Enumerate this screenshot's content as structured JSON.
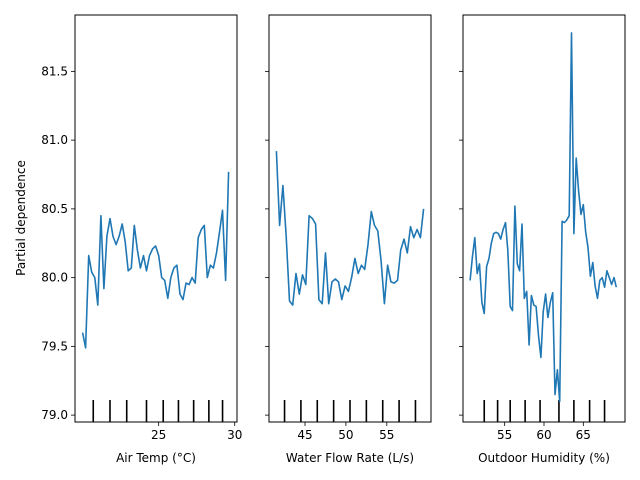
{
  "chart_data": [
    {
      "type": "line",
      "xlabel": "Air Temp (°C)",
      "ylabel": "Partial dependence",
      "xticks": [
        25,
        30
      ],
      "xlim": [
        19.5,
        30.15
      ],
      "ylim": [
        78.95,
        81.91
      ],
      "yticks": [
        79.0,
        79.5,
        80.0,
        80.5,
        81.0,
        81.5
      ],
      "line_color": "#1f77b4",
      "deciles": [
        20.7,
        21.8,
        22.9,
        24.2,
        25.3,
        26.3,
        27.3,
        28.3,
        29.2
      ],
      "x": [
        20.0,
        20.2,
        20.4,
        20.6,
        20.8,
        21.0,
        21.2,
        21.4,
        21.6,
        21.8,
        22.0,
        22.2,
        22.4,
        22.6,
        22.8,
        23.0,
        23.2,
        23.4,
        23.6,
        23.8,
        24.0,
        24.2,
        24.4,
        24.6,
        24.8,
        25.0,
        25.2,
        25.4,
        25.6,
        25.8,
        26.0,
        26.2,
        26.4,
        26.6,
        26.8,
        27.0,
        27.2,
        27.4,
        27.6,
        27.8,
        28.0,
        28.2,
        28.4,
        28.6,
        28.8,
        29.0,
        29.2,
        29.4,
        29.6
      ],
      "y": [
        79.6,
        79.49,
        80.16,
        80.04,
        80.0,
        79.8,
        80.45,
        79.92,
        80.3,
        80.43,
        80.3,
        80.24,
        80.3,
        80.39,
        80.26,
        80.05,
        80.07,
        80.38,
        80.2,
        80.07,
        80.16,
        80.05,
        80.16,
        80.21,
        80.23,
        80.16,
        80.0,
        79.98,
        79.85,
        80.0,
        80.07,
        80.09,
        79.88,
        79.84,
        79.96,
        79.95,
        80.0,
        79.96,
        80.29,
        80.35,
        80.38,
        80.0,
        80.09,
        80.07,
        80.18,
        80.33,
        80.49,
        79.98,
        80.77
      ]
    },
    {
      "type": "line",
      "xlabel": "Water Flow Rate (L/s)",
      "xticks": [
        45,
        50,
        55
      ],
      "xlim": [
        40.6,
        60.4
      ],
      "ylim": [
        78.95,
        81.91
      ],
      "line_color": "#1f77b4",
      "deciles": [
        42.5,
        44.5,
        46.5,
        48.5,
        50.5,
        52.5,
        54.5,
        56.5,
        58.5
      ],
      "x": [
        41.5,
        41.9,
        42.3,
        42.7,
        43.1,
        43.5,
        43.9,
        44.3,
        44.7,
        45.1,
        45.5,
        45.9,
        46.3,
        46.7,
        47.1,
        47.5,
        47.9,
        48.3,
        48.7,
        49.1,
        49.5,
        49.9,
        50.3,
        50.7,
        51.1,
        51.5,
        51.9,
        52.3,
        52.7,
        53.1,
        53.5,
        53.9,
        54.3,
        54.7,
        55.1,
        55.5,
        55.9,
        56.3,
        56.7,
        57.1,
        57.5,
        57.9,
        58.3,
        58.7,
        59.1,
        59.5
      ],
      "y": [
        80.92,
        80.38,
        80.67,
        80.3,
        79.83,
        79.8,
        80.03,
        79.88,
        80.02,
        79.95,
        80.45,
        80.43,
        80.39,
        79.84,
        79.81,
        80.18,
        79.81,
        79.97,
        79.99,
        79.97,
        79.84,
        79.94,
        79.9,
        80.0,
        80.14,
        80.03,
        80.09,
        80.06,
        80.24,
        80.48,
        80.38,
        80.34,
        80.12,
        79.81,
        80.09,
        79.97,
        79.96,
        79.98,
        80.2,
        80.28,
        80.18,
        80.37,
        80.29,
        80.35,
        80.29,
        80.5
      ]
    },
    {
      "type": "line",
      "xlabel": "Outdoor Humidity (%)",
      "xticks": [
        55,
        60,
        65
      ],
      "xlim": [
        49.7,
        70.3
      ],
      "ylim": [
        78.95,
        81.91
      ],
      "line_color": "#1f77b4",
      "deciles": [
        52.4,
        54.1,
        55.7,
        57.6,
        59.5,
        61.9,
        63.8,
        65.8,
        67.7
      ],
      "x": [
        50.6,
        50.9,
        51.2,
        51.5,
        51.8,
        52.1,
        52.4,
        52.7,
        53.0,
        53.3,
        53.6,
        53.9,
        54.2,
        54.5,
        54.8,
        55.1,
        55.4,
        55.7,
        56.0,
        56.3,
        56.6,
        56.9,
        57.2,
        57.5,
        57.8,
        58.1,
        58.4,
        58.7,
        59.0,
        59.3,
        59.6,
        59.9,
        60.2,
        60.5,
        60.8,
        61.1,
        61.4,
        61.7,
        62.0,
        62.3,
        62.6,
        62.9,
        63.2,
        63.5,
        63.8,
        64.1,
        64.4,
        64.7,
        65.0,
        65.3,
        65.6,
        65.9,
        66.2,
        66.5,
        66.8,
        67.1,
        67.4,
        67.7,
        68.0,
        68.3,
        68.6,
        68.9,
        69.2
      ],
      "y": [
        79.98,
        80.15,
        80.29,
        80.03,
        80.1,
        79.82,
        79.74,
        80.08,
        80.14,
        80.25,
        80.32,
        80.33,
        80.32,
        80.28,
        80.35,
        80.4,
        80.2,
        79.79,
        79.76,
        80.52,
        80.1,
        80.05,
        80.39,
        79.85,
        79.9,
        79.51,
        79.87,
        79.8,
        79.79,
        79.58,
        79.42,
        79.75,
        79.88,
        79.71,
        79.82,
        79.89,
        79.15,
        79.33,
        79.1,
        80.41,
        80.4,
        80.42,
        80.45,
        81.78,
        80.32,
        80.87,
        80.63,
        80.46,
        80.53,
        80.33,
        80.22,
        80.01,
        80.11,
        79.94,
        79.85,
        79.98,
        80.0,
        79.93,
        80.05,
        80.0,
        79.95,
        80.0,
        79.93
      ]
    }
  ]
}
